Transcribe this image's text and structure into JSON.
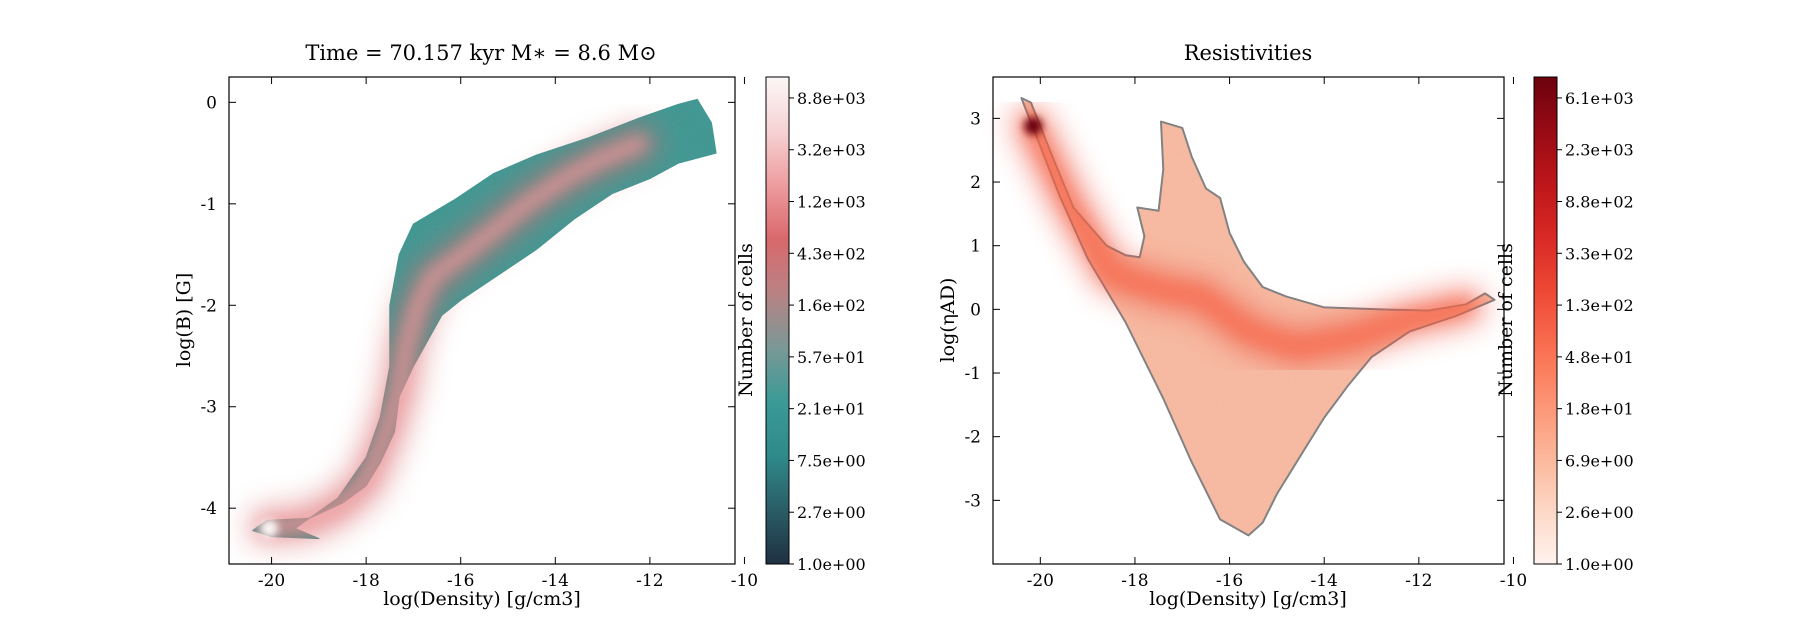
{
  "chart_data": [
    {
      "type": "heatmap",
      "title": "Time = 70.157 kyr    M∗ = 8.6 M⊙",
      "xlabel": "log(Density) [g/cm3]",
      "ylabel": "log(B) [G]",
      "xlim": [
        -20.9,
        -10.2
      ],
      "ylim": [
        -4.55,
        0.25
      ],
      "xticks": [
        -20,
        -18,
        -16,
        -14,
        -12,
        -10
      ],
      "yticks": [
        -4,
        -3,
        -2,
        -1,
        0
      ],
      "colormap": "teal-to-pink-to-white (log)",
      "colorbar": {
        "label": "Number of cells",
        "ticks": [
          "1.0e+00",
          "2.7e+00",
          "7.5e+00",
          "2.1e+01",
          "5.7e+01",
          "1.6e+02",
          "4.3e+02",
          "1.2e+03",
          "3.2e+03",
          "8.8e+03"
        ],
        "colors": [
          "#1f3042",
          "#2a5d66",
          "#2f8a8a",
          "#3a9a96",
          "#7a9896",
          "#b98284",
          "#d9686c",
          "#ee9c9f",
          "#f6d3d4",
          "#fcf7f7"
        ]
      },
      "distribution_outline": [
        [
          -20.4,
          -4.22
        ],
        [
          -20.1,
          -4.12
        ],
        [
          -19.2,
          -4.1
        ],
        [
          -18.5,
          -3.95
        ],
        [
          -18.0,
          -3.78
        ],
        [
          -17.7,
          -3.55
        ],
        [
          -17.4,
          -3.25
        ],
        [
          -17.3,
          -2.9
        ],
        [
          -17.0,
          -2.6
        ],
        [
          -16.4,
          -2.1
        ],
        [
          -16.0,
          -1.95
        ],
        [
          -15.2,
          -1.7
        ],
        [
          -14.4,
          -1.45
        ],
        [
          -13.6,
          -1.15
        ],
        [
          -12.8,
          -0.9
        ],
        [
          -12.0,
          -0.75
        ],
        [
          -11.4,
          -0.6
        ],
        [
          -10.6,
          -0.5
        ],
        [
          -10.7,
          -0.2
        ],
        [
          -11.0,
          0.03
        ],
        [
          -11.4,
          -0.02
        ],
        [
          -12.2,
          -0.15
        ],
        [
          -13.3,
          -0.35
        ],
        [
          -14.4,
          -0.52
        ],
        [
          -15.3,
          -0.7
        ],
        [
          -16.1,
          -0.95
        ],
        [
          -17.0,
          -1.2
        ],
        [
          -17.3,
          -1.5
        ],
        [
          -17.5,
          -2.0
        ],
        [
          -17.5,
          -2.6
        ],
        [
          -17.7,
          -3.1
        ],
        [
          -18.0,
          -3.5
        ],
        [
          -18.6,
          -3.9
        ],
        [
          -19.5,
          -4.2
        ],
        [
          -19.0,
          -4.3
        ],
        [
          -20.0,
          -4.28
        ]
      ],
      "ridge": [
        [
          -20.1,
          -4.18
        ],
        [
          -19.3,
          -4.15
        ],
        [
          -18.6,
          -4.0
        ],
        [
          -18.0,
          -3.75
        ],
        [
          -17.6,
          -3.3
        ],
        [
          -17.3,
          -2.85
        ],
        [
          -17.15,
          -2.4
        ],
        [
          -16.9,
          -2.0
        ],
        [
          -16.6,
          -1.72
        ],
        [
          -16.1,
          -1.55
        ],
        [
          -15.4,
          -1.3
        ],
        [
          -14.6,
          -1.0
        ],
        [
          -13.8,
          -0.75
        ],
        [
          -13.0,
          -0.55
        ],
        [
          -12.2,
          -0.4
        ]
      ],
      "hotspot": [
        -20.05,
        -4.2
      ]
    },
    {
      "type": "heatmap",
      "title": "Resistivities",
      "xlabel": "log(Density) [g/cm3]",
      "ylabel": "log(ηAD)",
      "xlim": [
        -21.0,
        -10.2
      ],
      "ylim": [
        -4.0,
        3.65
      ],
      "xticks": [
        -20,
        -18,
        -16,
        -14,
        -12,
        -10
      ],
      "yticks": [
        -3,
        -2,
        -1,
        0,
        1,
        2,
        3
      ],
      "colormap": "Reds (log)",
      "colorbar": {
        "label": "Number of cells",
        "ticks": [
          "1.0e+00",
          "2.6e+00",
          "6.9e+00",
          "1.8e+01",
          "4.8e+01",
          "1.3e+02",
          "3.3e+02",
          "8.8e+02",
          "2.3e+03",
          "6.1e+03"
        ],
        "colors": [
          "#fff3ee",
          "#fdd7c5",
          "#fcb69a",
          "#fc9373",
          "#f96f50",
          "#ef4a35",
          "#d92a26",
          "#be161a",
          "#980b14",
          "#6b010d"
        ]
      },
      "distribution_outline": [
        [
          -20.4,
          3.32
        ],
        [
          -20.2,
          3.25
        ],
        [
          -19.8,
          2.5
        ],
        [
          -19.3,
          1.6
        ],
        [
          -18.6,
          1.0
        ],
        [
          -18.2,
          0.85
        ],
        [
          -17.9,
          0.82
        ],
        [
          -17.8,
          1.15
        ],
        [
          -17.95,
          1.6
        ],
        [
          -17.5,
          1.55
        ],
        [
          -17.4,
          2.2
        ],
        [
          -17.45,
          2.95
        ],
        [
          -17.0,
          2.85
        ],
        [
          -16.8,
          2.4
        ],
        [
          -16.5,
          1.9
        ],
        [
          -16.2,
          1.75
        ],
        [
          -16.0,
          1.2
        ],
        [
          -15.7,
          0.75
        ],
        [
          -15.3,
          0.35
        ],
        [
          -14.8,
          0.2
        ],
        [
          -14.0,
          0.03
        ],
        [
          -12.8,
          0.0
        ],
        [
          -11.8,
          -0.02
        ],
        [
          -11.0,
          0.08
        ],
        [
          -10.6,
          0.25
        ],
        [
          -10.4,
          0.15
        ],
        [
          -11.2,
          -0.1
        ],
        [
          -12.2,
          -0.35
        ],
        [
          -13.0,
          -0.75
        ],
        [
          -13.5,
          -1.2
        ],
        [
          -14.0,
          -1.7
        ],
        [
          -14.5,
          -2.3
        ],
        [
          -15.0,
          -2.9
        ],
        [
          -15.3,
          -3.35
        ],
        [
          -15.6,
          -3.55
        ],
        [
          -16.2,
          -3.3
        ],
        [
          -16.8,
          -2.4
        ],
        [
          -17.4,
          -1.4
        ],
        [
          -18.2,
          -0.2
        ],
        [
          -19.0,
          0.8
        ],
        [
          -19.6,
          1.8
        ],
        [
          -20.1,
          2.75
        ]
      ],
      "ridge": [
        [
          -20.2,
          2.9
        ],
        [
          -19.4,
          1.7
        ],
        [
          -18.5,
          0.55
        ],
        [
          -17.4,
          0.3
        ],
        [
          -16.6,
          0.2
        ],
        [
          -15.6,
          -0.35
        ],
        [
          -14.6,
          -0.6
        ],
        [
          -13.4,
          -0.45
        ],
        [
          -12.2,
          -0.15
        ],
        [
          -11.0,
          0.05
        ]
      ],
      "hotspot": [
        -20.15,
        2.88
      ]
    }
  ]
}
